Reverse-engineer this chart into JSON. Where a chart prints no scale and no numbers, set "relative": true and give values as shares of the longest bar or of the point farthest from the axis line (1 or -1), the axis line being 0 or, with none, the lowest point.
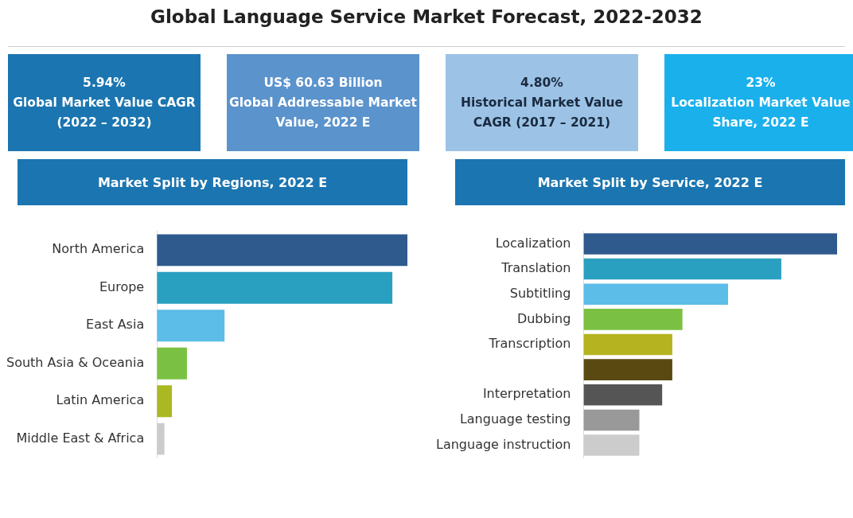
{
  "chart_data": [
    {
      "type": "other",
      "title": "Global Language Service Market Forecast, 2022-2032",
      "annotations": [
        "5.94%\nGlobal Market Value CAGR\n(2022 – 2032)",
        "US$ 60.63 Billion\nGlobal Addressable Market\nValue, 2022 E",
        "4.80%\nHistorical Market Value\nCAGR (2017 – 2021)",
        "23%\nLocalization Market Value\nShare, 2022 E"
      ]
    },
    {
      "type": "bar",
      "orientation": "horizontal",
      "relative": true,
      "title": "Market Split by Regions, 2022 E",
      "categories": [
        "North America",
        "Europe",
        "East Asia",
        "South Asia & Oceania",
        "Latin America",
        "Middle East & Africa"
      ],
      "values": [
        1,
        0.94,
        0.27,
        0.12,
        0.06,
        0.03
      ],
      "colors": [
        "#2e5a8e",
        "#2aa0c0",
        "#5bbde8",
        "#7ac143",
        "#aab824",
        "#cccccc"
      ]
    },
    {
      "type": "bar",
      "orientation": "horizontal",
      "relative": true,
      "title": "Market Split by Service, 2022 E",
      "categories": [
        "Localization",
        "Translation",
        "Subtitling",
        "Dubbing",
        "Transcription",
        null,
        "Interpretation",
        "Language testing",
        "Language instruction"
      ],
      "values": [
        1,
        0.78,
        0.57,
        0.39,
        0.35,
        0.35,
        0.31,
        0.22,
        0.22
      ],
      "colors": [
        "#2e5a8e",
        "#2aa0c0",
        "#5bbde8",
        "#7ac143",
        "#b5b320",
        "#5a4a12",
        "#555555",
        "#999999",
        "#cccccc"
      ]
    }
  ]
}
